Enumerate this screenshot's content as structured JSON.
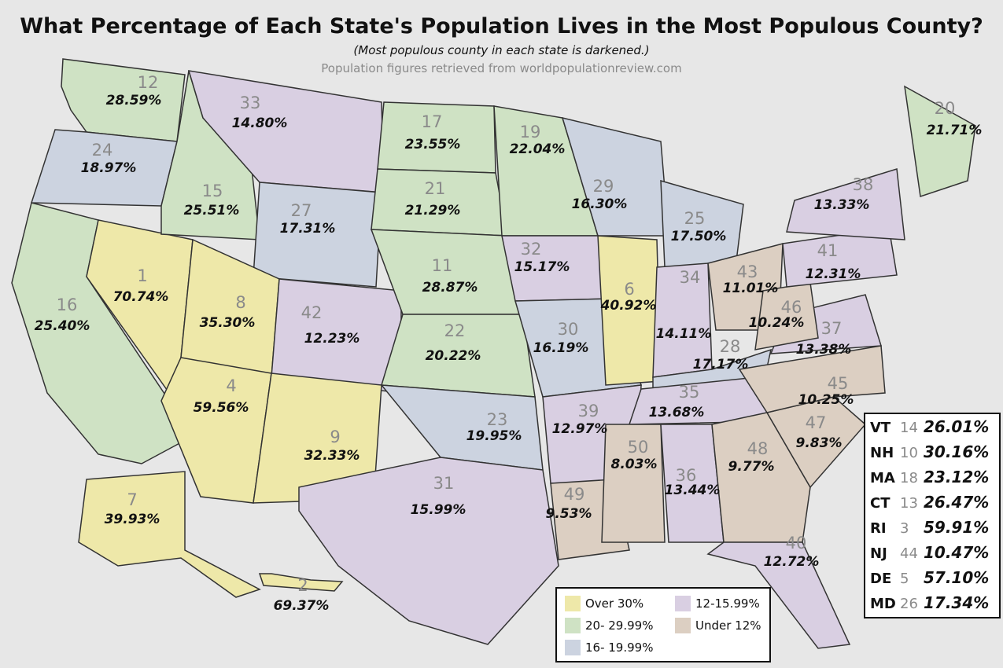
{
  "title": "What Percentage of Each State's Population Lives in the Most Populous County?",
  "subtitle": "(Most populous county in each state is darkened.)",
  "source": "Population figures retrieved from worldpopulationreview.com",
  "colors": {
    "over30": "#eee8a9",
    "c20to30": "#cfe2c4",
    "c16to20": "#ccd3e0",
    "c12to16": "#d9cfe2",
    "under12": "#dccfc2"
  },
  "legend": [
    {
      "label": "Over 30%",
      "color": "#eee8a9"
    },
    {
      "label": "20- 29.99%",
      "color": "#cfe2c4"
    },
    {
      "label": "16- 19.99%",
      "color": "#ccd3e0"
    },
    {
      "label": "12-15.99%",
      "color": "#d9cfe2"
    },
    {
      "label": "Under 12%",
      "color": "#dccfc2"
    }
  ],
  "states": [
    {
      "rank": "12",
      "pct": "28.59%",
      "color": "#cfe2c4"
    },
    {
      "rank": "24",
      "pct": "18.97%",
      "color": "#ccd3e0"
    },
    {
      "rank": "16",
      "pct": "25.40%",
      "color": "#cfe2c4"
    },
    {
      "rank": "1",
      "pct": "70.74%",
      "color": "#eee8a9"
    },
    {
      "rank": "15",
      "pct": "25.51%",
      "color": "#cfe2c4"
    },
    {
      "rank": "33",
      "pct": "14.80%",
      "color": "#d9cfe2"
    },
    {
      "rank": "27",
      "pct": "17.31%",
      "color": "#ccd3e0"
    },
    {
      "rank": "8",
      "pct": "35.30%",
      "color": "#eee8a9"
    },
    {
      "rank": "4",
      "pct": "59.56%",
      "color": "#eee8a9"
    },
    {
      "rank": "42",
      "pct": "12.23%",
      "color": "#d9cfe2"
    },
    {
      "rank": "9",
      "pct": "32.33%",
      "color": "#eee8a9"
    },
    {
      "rank": "17",
      "pct": "23.55%",
      "color": "#cfe2c4"
    },
    {
      "rank": "21",
      "pct": "21.29%",
      "color": "#cfe2c4"
    },
    {
      "rank": "11",
      "pct": "28.87%",
      "color": "#cfe2c4"
    },
    {
      "rank": "22",
      "pct": "20.22%",
      "color": "#cfe2c4"
    },
    {
      "rank": "23",
      "pct": "19.95%",
      "color": "#ccd3e0"
    },
    {
      "rank": "31",
      "pct": "15.99%",
      "color": "#d9cfe2"
    },
    {
      "rank": "19",
      "pct": "22.04%",
      "color": "#cfe2c4"
    },
    {
      "rank": "32",
      "pct": "15.17%",
      "color": "#d9cfe2"
    },
    {
      "rank": "30",
      "pct": "16.19%",
      "color": "#ccd3e0"
    },
    {
      "rank": "39",
      "pct": "12.97%",
      "color": "#d9cfe2"
    },
    {
      "rank": "49",
      "pct": "9.53%",
      "color": "#dccfc2"
    },
    {
      "rank": "29",
      "pct": "16.30%",
      "color": "#ccd3e0"
    },
    {
      "rank": "6",
      "pct": "40.92%",
      "color": "#eee8a9"
    },
    {
      "rank": "25",
      "pct": "17.50%",
      "color": "#ccd3e0"
    },
    {
      "rank": "34",
      "pct": "14.11%",
      "color": "#d9cfe2"
    },
    {
      "rank": "43",
      "pct": "11.01%",
      "color": "#dccfc2"
    },
    {
      "rank": "28",
      "pct": "17.17%",
      "color": "#ccd3e0"
    },
    {
      "rank": "35",
      "pct": "13.68%",
      "color": "#d9cfe2"
    },
    {
      "rank": "50",
      "pct": "8.03%",
      "color": "#dccfc2"
    },
    {
      "rank": "36",
      "pct": "13.44%",
      "color": "#d9cfe2"
    },
    {
      "rank": "48",
      "pct": "9.77%",
      "color": "#dccfc2"
    },
    {
      "rank": "40",
      "pct": "12.72%",
      "color": "#d9cfe2"
    },
    {
      "rank": "47",
      "pct": "9.83%",
      "color": "#dccfc2"
    },
    {
      "rank": "45",
      "pct": "10.25%",
      "color": "#dccfc2"
    },
    {
      "rank": "37",
      "pct": "13.38%",
      "color": "#d9cfe2"
    },
    {
      "rank": "46",
      "pct": "10.24%",
      "color": "#dccfc2"
    },
    {
      "rank": "41",
      "pct": "12.31%",
      "color": "#d9cfe2"
    },
    {
      "rank": "38",
      "pct": "13.33%",
      "color": "#d9cfe2"
    },
    {
      "rank": "20",
      "pct": "21.71%",
      "color": "#cfe2c4"
    },
    {
      "rank": "7",
      "pct": "39.93%",
      "color": "#eee8a9"
    },
    {
      "rank": "2",
      "pct": "69.37%",
      "color": "#eee8a9"
    }
  ],
  "northeast": [
    {
      "abbr": "VT",
      "rank": "14",
      "pct": "26.01%"
    },
    {
      "abbr": "NH",
      "rank": "10",
      "pct": "30.16%"
    },
    {
      "abbr": "MA",
      "rank": "18",
      "pct": "23.12%"
    },
    {
      "abbr": "CT",
      "rank": "13",
      "pct": "26.47%"
    },
    {
      "abbr": "RI",
      "rank": "3",
      "pct": "59.91%"
    },
    {
      "abbr": "NJ",
      "rank": "44",
      "pct": "10.47%"
    },
    {
      "abbr": "DE",
      "rank": "5",
      "pct": "57.10%"
    },
    {
      "abbr": "MD",
      "rank": "26",
      "pct": "17.34%"
    }
  ]
}
